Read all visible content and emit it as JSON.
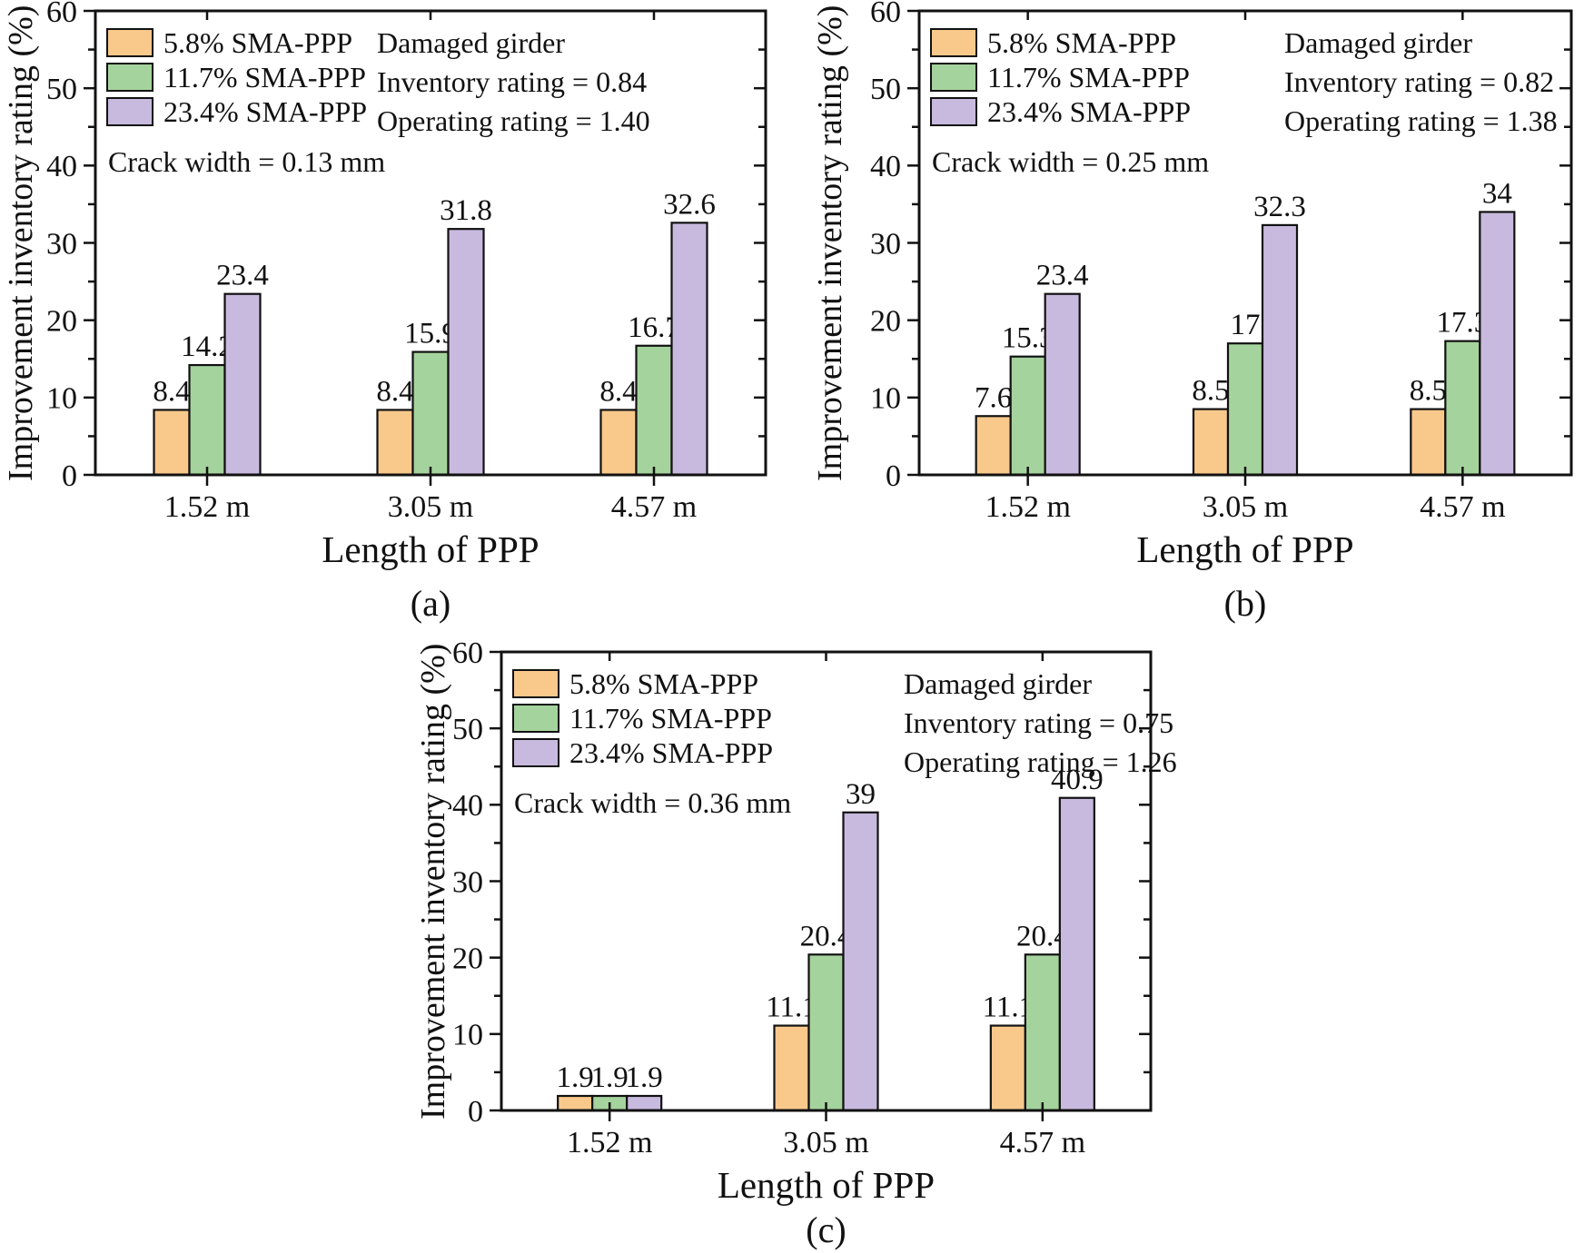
{
  "figure": {
    "background": "#ffffff",
    "text_color": "#111111",
    "axis_color": "#111111"
  },
  "chart_data": [
    {
      "type": "bar",
      "caption": "(a)",
      "xlabel": "Length of PPP",
      "ylabel": "Improvement inventory rating (%)",
      "ylim": [
        0,
        60
      ],
      "yticks": [
        0,
        10,
        20,
        30,
        40,
        50,
        60
      ],
      "grid": false,
      "legend_position": "top-left",
      "categories": [
        "1.52 m",
        "3.05 m",
        "4.57 m"
      ],
      "series": [
        {
          "name": "5.8% SMA-PPP",
          "color": "#F9C98C",
          "values": [
            8.4,
            8.4,
            8.4
          ],
          "labels": [
            "8.4",
            "8.4",
            "8.4"
          ]
        },
        {
          "name": "11.7% SMA-PPP",
          "color": "#A5D39D",
          "values": [
            14.2,
            15.9,
            16.7
          ],
          "labels": [
            "14.2",
            "15.9",
            "16.7"
          ]
        },
        {
          "name": "23.4% SMA-PPP",
          "color": "#C8BADF",
          "values": [
            23.4,
            31.8,
            32.6
          ],
          "labels": [
            "23.4",
            "31.8",
            "32.6"
          ]
        }
      ],
      "annotation": {
        "line1": "Damaged girder",
        "line2": "Inventory rating = 0.84",
        "line3": "Operating rating = 1.40"
      },
      "note": "Crack width = 0.13 mm"
    },
    {
      "type": "bar",
      "caption": "(b)",
      "xlabel": "Length of PPP",
      "ylabel": "Improvement inventory rating (%)",
      "ylim": [
        0,
        60
      ],
      "yticks": [
        0,
        10,
        20,
        30,
        40,
        50,
        60
      ],
      "grid": false,
      "legend_position": "top-left",
      "categories": [
        "1.52 m",
        "3.05 m",
        "4.57 m"
      ],
      "series": [
        {
          "name": "5.8% SMA-PPP",
          "color": "#F9C98C",
          "values": [
            7.6,
            8.5,
            8.5
          ],
          "labels": [
            "7.6",
            "8.5",
            "8.5"
          ]
        },
        {
          "name": "11.7% SMA-PPP",
          "color": "#A5D39D",
          "values": [
            15.3,
            17,
            17.3
          ],
          "labels": [
            "15.3",
            "17",
            "17.3"
          ]
        },
        {
          "name": "23.4% SMA-PPP",
          "color": "#C8BADF",
          "values": [
            23.4,
            32.3,
            34
          ],
          "labels": [
            "23.4",
            "32.3",
            "34"
          ]
        }
      ],
      "annotation": {
        "line1": "Damaged girder",
        "line2": "Inventory rating = 0.82",
        "line3": "Operating rating = 1.38"
      },
      "note": "Crack width = 0.25 mm"
    },
    {
      "type": "bar",
      "caption": "(c)",
      "xlabel": "Length of PPP",
      "ylabel": "Improvement inventory rating (%)",
      "ylim": [
        0,
        60
      ],
      "yticks": [
        0,
        10,
        20,
        30,
        40,
        50,
        60
      ],
      "grid": false,
      "legend_position": "top-left",
      "categories": [
        "1.52 m",
        "3.05 m",
        "4.57 m"
      ],
      "series": [
        {
          "name": "5.8% SMA-PPP",
          "color": "#F9C98C",
          "values": [
            1.9,
            11.1,
            11.1
          ],
          "labels": [
            "1.9",
            "11.1",
            "11.1"
          ]
        },
        {
          "name": "11.7% SMA-PPP",
          "color": "#A5D39D",
          "values": [
            1.9,
            20.4,
            20.4
          ],
          "labels": [
            "1.9",
            "20.4",
            "20.4"
          ]
        },
        {
          "name": "23.4% SMA-PPP",
          "color": "#C8BADF",
          "values": [
            1.9,
            39,
            40.9
          ],
          "labels": [
            "1.9",
            "39",
            "40.9"
          ]
        }
      ],
      "annotation": {
        "line1": "Damaged girder",
        "line2": "Inventory rating = 0.75",
        "line3": "Operating rating = 1.26"
      },
      "note": "Crack width = 0.36 mm"
    }
  ]
}
